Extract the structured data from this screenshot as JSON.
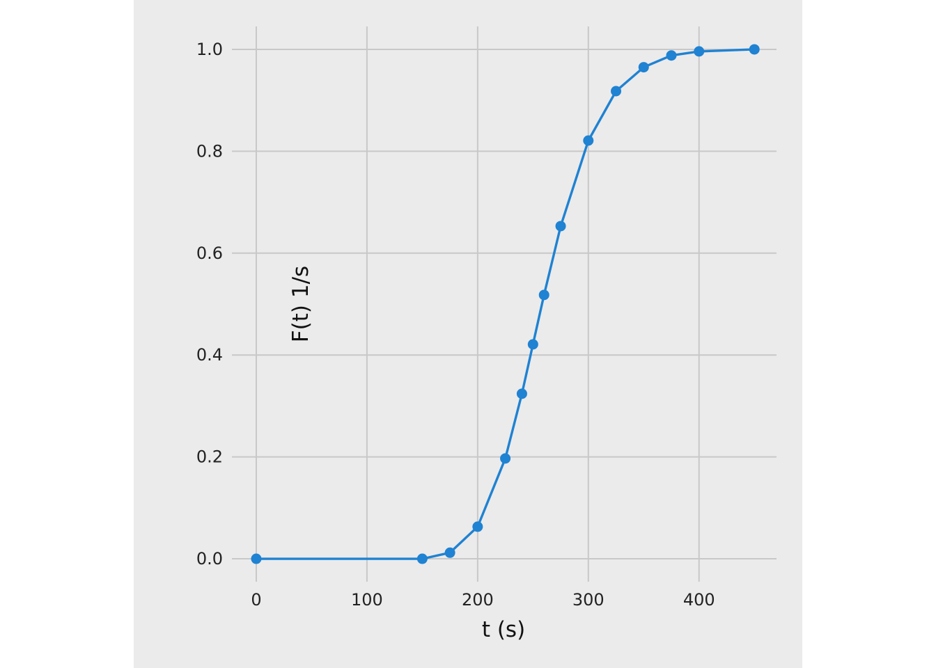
{
  "chart_data": {
    "type": "line",
    "title": "",
    "xlabel": "t (s)",
    "ylabel": "F(t) 1/s",
    "xlim": [
      -22,
      470
    ],
    "ylim": [
      -0.045,
      1.045
    ],
    "xticks": [
      0,
      100,
      200,
      300,
      400
    ],
    "yticks": [
      0.0,
      0.2,
      0.4,
      0.6,
      0.8,
      1.0
    ],
    "xtick_labels": [
      "0",
      "100",
      "200",
      "300",
      "400"
    ],
    "ytick_labels": [
      "0.0",
      "0.2",
      "0.4",
      "0.6",
      "0.8",
      "1.0"
    ],
    "grid": true,
    "legend": false,
    "series": [
      {
        "color": "#1f82d2",
        "marker": "circle",
        "x": [
          0,
          150,
          175,
          200,
          225,
          240,
          250,
          260,
          275,
          300,
          325,
          350,
          375,
          400,
          450
        ],
        "y": [
          0.0,
          0.0,
          0.012,
          0.063,
          0.197,
          0.324,
          0.421,
          0.518,
          0.653,
          0.821,
          0.918,
          0.965,
          0.988,
          0.996,
          1.0
        ]
      }
    ]
  }
}
